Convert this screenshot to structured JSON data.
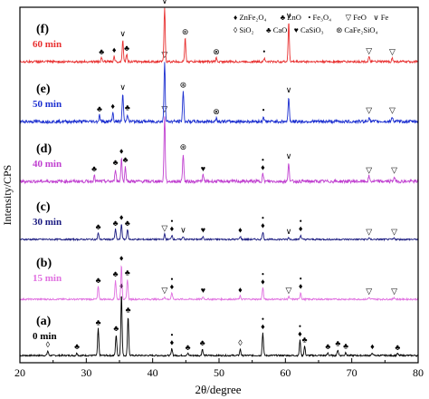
{
  "chart_data": {
    "type": "line",
    "title": "",
    "xlabel": "2θ/degree",
    "ylabel": "Intensity/CPS",
    "xlim": [
      20,
      80
    ],
    "xticks": [
      20,
      30,
      40,
      50,
      60,
      70,
      80
    ],
    "grid": false,
    "legend_placement": "top-right",
    "legend": [
      {
        "symbol": "♦",
        "label": "ZnFe₂O₄"
      },
      {
        "symbol": "♣",
        "label": "ZnO"
      },
      {
        "symbol": "•",
        "label": "Fe₃O₄"
      },
      {
        "symbol": "▽",
        "label": "FeO"
      },
      {
        "symbol": "∨",
        "label": "Fe"
      },
      {
        "symbol": "◊",
        "label": "SiO₂"
      },
      {
        "symbol": "♣",
        "label": "CaO"
      },
      {
        "symbol": "♥",
        "label": "CaSiO₃"
      },
      {
        "symbol": "⊛",
        "label": "CaFe₂SiO₄"
      }
    ],
    "series": [
      {
        "panel": "(a)",
        "name": "0 min",
        "color": "#000000",
        "peaks": [
          {
            "x": 24.2,
            "h": 0.07,
            "m": [
              "◊"
            ]
          },
          {
            "x": 28.6,
            "h": 0.04,
            "m": [
              "♣"
            ]
          },
          {
            "x": 31.8,
            "h": 0.42,
            "m": [
              "♣"
            ]
          },
          {
            "x": 34.5,
            "h": 0.33,
            "m": [
              "♣"
            ]
          },
          {
            "x": 35.3,
            "h": 1.0,
            "m": [
              "♦"
            ]
          },
          {
            "x": 36.3,
            "h": 0.62,
            "m": [
              "♣"
            ]
          },
          {
            "x": 42.9,
            "h": 0.11,
            "m": [
              "♦",
              "•"
            ]
          },
          {
            "x": 45.3,
            "h": 0.03,
            "m": [
              "♣"
            ]
          },
          {
            "x": 47.5,
            "h": 0.1,
            "m": [
              "♣"
            ]
          },
          {
            "x": 53.2,
            "h": 0.1,
            "m": [
              "◊"
            ]
          },
          {
            "x": 56.6,
            "h": 0.36,
            "m": [
              "♦",
              "•"
            ]
          },
          {
            "x": 62.2,
            "h": 0.24,
            "m": [
              "♦",
              "•"
            ]
          },
          {
            "x": 62.9,
            "h": 0.15,
            "m": [
              "♣"
            ]
          },
          {
            "x": 66.4,
            "h": 0.04,
            "m": [
              "♣"
            ]
          },
          {
            "x": 67.9,
            "h": 0.09,
            "m": [
              "♣"
            ]
          },
          {
            "x": 69.1,
            "h": 0.05,
            "m": [
              "♣"
            ]
          },
          {
            "x": 73.1,
            "h": 0.04,
            "m": [
              "♦"
            ]
          },
          {
            "x": 76.9,
            "h": 0.03,
            "m": [
              "♣"
            ]
          }
        ]
      },
      {
        "panel": "(b)",
        "name": "15 min",
        "color": "#e070e0",
        "peaks": [
          {
            "x": 31.8,
            "h": 0.2,
            "m": [
              "♣"
            ]
          },
          {
            "x": 34.4,
            "h": 0.3,
            "m": [
              "♣"
            ]
          },
          {
            "x": 35.3,
            "h": 0.55,
            "m": [
              "♦"
            ]
          },
          {
            "x": 36.2,
            "h": 0.32,
            "m": [
              "♣"
            ]
          },
          {
            "x": 41.8,
            "h": 0.04,
            "m": [
              "▽"
            ]
          },
          {
            "x": 42.9,
            "h": 0.1,
            "m": [
              "♦",
              "•"
            ]
          },
          {
            "x": 47.6,
            "h": 0.04,
            "m": [
              "♥"
            ]
          },
          {
            "x": 53.2,
            "h": 0.05,
            "m": [
              "♦"
            ]
          },
          {
            "x": 56.6,
            "h": 0.18,
            "m": [
              "♦",
              "•"
            ]
          },
          {
            "x": 60.5,
            "h": 0.04,
            "m": [
              "▽"
            ]
          },
          {
            "x": 62.3,
            "h": 0.11,
            "m": [
              "♦",
              "•"
            ]
          },
          {
            "x": 72.6,
            "h": 0.03,
            "m": [
              "▽"
            ]
          },
          {
            "x": 76.4,
            "h": 0.03,
            "m": [
              "▽"
            ]
          }
        ]
      },
      {
        "panel": "(c)",
        "name": "30 min",
        "color": "#1a1a80",
        "peaks": [
          {
            "x": 31.8,
            "h": 0.1,
            "m": [
              "♣"
            ]
          },
          {
            "x": 34.4,
            "h": 0.16,
            "m": [
              "♣"
            ]
          },
          {
            "x": 35.3,
            "h": 0.25,
            "m": [
              "♦"
            ]
          },
          {
            "x": 36.2,
            "h": 0.16,
            "m": [
              "♣"
            ]
          },
          {
            "x": 41.8,
            "h": 0.08,
            "m": [
              "▽"
            ]
          },
          {
            "x": 42.9,
            "h": 0.07,
            "m": [
              "♦",
              "•"
            ]
          },
          {
            "x": 44.6,
            "h": 0.05,
            "m": [
              "∨"
            ]
          },
          {
            "x": 47.6,
            "h": 0.05,
            "m": [
              "♥"
            ]
          },
          {
            "x": 53.2,
            "h": 0.05,
            "m": [
              "♦"
            ]
          },
          {
            "x": 56.6,
            "h": 0.12,
            "m": [
              "♦",
              "•"
            ]
          },
          {
            "x": 60.5,
            "h": 0.03,
            "m": [
              "∨"
            ]
          },
          {
            "x": 62.3,
            "h": 0.07,
            "m": [
              "♦",
              "•"
            ]
          },
          {
            "x": 72.6,
            "h": 0.02,
            "m": [
              "▽"
            ]
          },
          {
            "x": 76.4,
            "h": 0.02,
            "m": [
              "▽"
            ]
          }
        ]
      },
      {
        "panel": "(d)",
        "name": "40 min",
        "color": "#c040d0",
        "peaks": [
          {
            "x": 31.2,
            "h": 0.05,
            "m": [
              "♣"
            ]
          },
          {
            "x": 34.4,
            "h": 0.1,
            "m": [
              "♣"
            ]
          },
          {
            "x": 35.3,
            "h": 0.19,
            "m": [
              "♦"
            ]
          },
          {
            "x": 35.9,
            "h": 0.12,
            "m": [
              "♣"
            ]
          },
          {
            "x": 41.8,
            "h": 0.52,
            "m": [
              "▽"
            ]
          },
          {
            "x": 44.6,
            "h": 0.22,
            "m": [
              "⊛"
            ]
          },
          {
            "x": 47.6,
            "h": 0.05,
            "m": [
              "♥"
            ]
          },
          {
            "x": 56.6,
            "h": 0.06,
            "m": [
              "♦",
              "•"
            ]
          },
          {
            "x": 60.5,
            "h": 0.15,
            "m": [
              "∨"
            ]
          },
          {
            "x": 72.6,
            "h": 0.04,
            "m": [
              "▽"
            ]
          },
          {
            "x": 76.4,
            "h": 0.04,
            "m": [
              "▽"
            ]
          }
        ]
      },
      {
        "panel": "(e)",
        "name": "50 min",
        "color": "#1c2fd0",
        "peaks": [
          {
            "x": 32.0,
            "h": 0.05,
            "m": [
              "♣"
            ]
          },
          {
            "x": 34.0,
            "h": 0.07,
            "m": [
              "♦"
            ]
          },
          {
            "x": 35.5,
            "h": 0.22,
            "m": [
              "∨"
            ]
          },
          {
            "x": 36.2,
            "h": 0.06,
            "m": [
              "♣"
            ]
          },
          {
            "x": 41.8,
            "h": 0.48,
            "m": [
              "▽"
            ]
          },
          {
            "x": 44.6,
            "h": 0.24,
            "m": [
              "⊛"
            ]
          },
          {
            "x": 49.6,
            "h": 0.03,
            "m": [
              "⊗"
            ]
          },
          {
            "x": 56.7,
            "h": 0.04,
            "m": [
              "•"
            ]
          },
          {
            "x": 60.5,
            "h": 0.2,
            "m": [
              "∨"
            ]
          },
          {
            "x": 72.6,
            "h": 0.04,
            "m": [
              "▽"
            ]
          },
          {
            "x": 76.1,
            "h": 0.04,
            "m": [
              "▽"
            ]
          }
        ]
      },
      {
        "panel": "(f)",
        "name": "60 min",
        "color": "#e83030",
        "peaks": [
          {
            "x": 32.3,
            "h": 0.04,
            "m": [
              "♣"
            ]
          },
          {
            "x": 34.2,
            "h": 0.06,
            "m": [
              "♦"
            ]
          },
          {
            "x": 35.5,
            "h": 0.24,
            "m": [
              "∨"
            ]
          },
          {
            "x": 36.1,
            "h": 0.08,
            "m": [
              "♣"
            ]
          },
          {
            "x": 41.8,
            "h": 0.6,
            "m": [
              "∨"
            ]
          },
          {
            "x": 44.9,
            "h": 0.26,
            "m": [
              "⊛"
            ]
          },
          {
            "x": 49.6,
            "h": 0.04,
            "m": [
              "⊗"
            ]
          },
          {
            "x": 56.8,
            "h": 0.04,
            "m": [
              "•"
            ]
          },
          {
            "x": 60.5,
            "h": 0.44,
            "m": [
              "∨"
            ]
          },
          {
            "x": 72.6,
            "h": 0.05,
            "m": [
              "▽"
            ]
          },
          {
            "x": 76.1,
            "h": 0.04,
            "m": [
              "▽"
            ]
          }
        ]
      }
    ]
  }
}
